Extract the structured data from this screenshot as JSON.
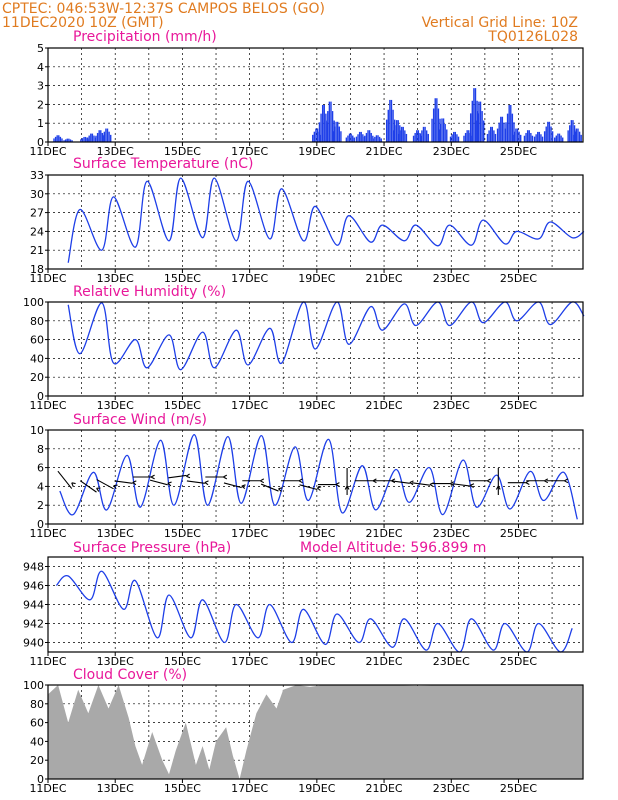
{
  "header": {
    "line1": "CPTEC:   046:53W-12:37S   CAMPOS BELOS (GO)",
    "line2_left": "11DEC2020 10Z (GMT)",
    "line2_right": "Vertical Grid Line: 10Z",
    "line3_right": "TQ0126L028"
  },
  "colors": {
    "header": "#e07b20",
    "titles": "#e8189a",
    "series": "#1e3fe8",
    "cloud": "#a9a9a9"
  },
  "x_tick_labels": [
    "11DEC",
    "13DEC",
    "15DEC",
    "17DEC",
    "19DEC",
    "21DEC",
    "23DEC",
    "25DEC"
  ],
  "model_altitude": "Model Altitude: 596.899  m",
  "chart_data": [
    {
      "type": "bar",
      "title": "Precipitation (mm/h)",
      "ylim": [
        0,
        5
      ],
      "yticks": [
        0,
        1,
        2,
        3,
        4,
        5
      ],
      "grid": true,
      "events": [
        {
          "day": 0.3,
          "value": 0.4
        },
        {
          "day": 0.6,
          "value": 0.2
        },
        {
          "day": 1.1,
          "value": 0.3
        },
        {
          "day": 1.3,
          "value": 0.5
        },
        {
          "day": 1.55,
          "value": 0.7
        },
        {
          "day": 1.75,
          "value": 0.8
        },
        {
          "day": 8.0,
          "value": 0.8
        },
        {
          "day": 8.2,
          "value": 2.2
        },
        {
          "day": 8.4,
          "value": 2.4
        },
        {
          "day": 8.6,
          "value": 1.2
        },
        {
          "day": 9.0,
          "value": 0.5
        },
        {
          "day": 9.3,
          "value": 0.6
        },
        {
          "day": 9.55,
          "value": 0.7
        },
        {
          "day": 9.8,
          "value": 0.4
        },
        {
          "day": 10.2,
          "value": 2.5
        },
        {
          "day": 10.4,
          "value": 1.3
        },
        {
          "day": 10.55,
          "value": 0.9
        },
        {
          "day": 11.0,
          "value": 0.7
        },
        {
          "day": 11.2,
          "value": 0.9
        },
        {
          "day": 11.55,
          "value": 2.6
        },
        {
          "day": 11.75,
          "value": 1.4
        },
        {
          "day": 12.1,
          "value": 0.6
        },
        {
          "day": 12.5,
          "value": 0.7
        },
        {
          "day": 12.7,
          "value": 3.2
        },
        {
          "day": 12.85,
          "value": 2.4
        },
        {
          "day": 13.2,
          "value": 0.9
        },
        {
          "day": 13.5,
          "value": 1.5
        },
        {
          "day": 13.75,
          "value": 2.2
        },
        {
          "day": 13.95,
          "value": 0.8
        },
        {
          "day": 14.3,
          "value": 0.7
        },
        {
          "day": 14.6,
          "value": 0.6
        },
        {
          "day": 14.9,
          "value": 1.2
        },
        {
          "day": 15.2,
          "value": 0.5
        },
        {
          "day": 15.6,
          "value": 1.3
        },
        {
          "day": 15.75,
          "value": 0.8
        }
      ]
    },
    {
      "type": "line",
      "title": "Surface Temperature (nC)",
      "ylim": [
        18,
        33
      ],
      "yticks": [
        18,
        21,
        24,
        27,
        30,
        33
      ],
      "grid": true,
      "mins": [
        {
          "day": 0.6,
          "value": 19.0
        },
        {
          "day": 1.6,
          "value": 21.0
        },
        {
          "day": 2.6,
          "value": 21.5
        },
        {
          "day": 3.6,
          "value": 22.5
        },
        {
          "day": 4.6,
          "value": 23.0
        },
        {
          "day": 5.6,
          "value": 22.5
        },
        {
          "day": 6.6,
          "value": 22.8
        },
        {
          "day": 7.6,
          "value": 22.5
        },
        {
          "day": 8.6,
          "value": 21.8
        },
        {
          "day": 9.6,
          "value": 22.3
        },
        {
          "day": 10.6,
          "value": 22.5
        },
        {
          "day": 11.6,
          "value": 21.7
        },
        {
          "day": 12.6,
          "value": 21.8
        },
        {
          "day": 13.6,
          "value": 22.0
        },
        {
          "day": 14.6,
          "value": 22.8
        },
        {
          "day": 15.6,
          "value": 23.0
        }
      ],
      "maxs": [
        {
          "day": 0.95,
          "value": 27.5
        },
        {
          "day": 1.95,
          "value": 29.5
        },
        {
          "day": 2.95,
          "value": 32.0
        },
        {
          "day": 3.95,
          "value": 32.5
        },
        {
          "day": 4.95,
          "value": 32.5
        },
        {
          "day": 5.95,
          "value": 32.0
        },
        {
          "day": 6.95,
          "value": 30.8
        },
        {
          "day": 7.95,
          "value": 28.0
        },
        {
          "day": 8.95,
          "value": 26.5
        },
        {
          "day": 9.95,
          "value": 25.0
        },
        {
          "day": 10.95,
          "value": 25.0
        },
        {
          "day": 11.95,
          "value": 25.0
        },
        {
          "day": 12.95,
          "value": 25.8
        },
        {
          "day": 13.95,
          "value": 24.0
        },
        {
          "day": 14.95,
          "value": 25.5
        },
        {
          "day": 15.95,
          "value": 24.0
        }
      ]
    },
    {
      "type": "line",
      "title": "Relative Humidity (%)",
      "ylim": [
        0,
        100
      ],
      "yticks": [
        0,
        20,
        40,
        60,
        80,
        100
      ],
      "grid": true,
      "mins": [
        {
          "day": 0.95,
          "value": 45
        },
        {
          "day": 1.95,
          "value": 35
        },
        {
          "day": 2.95,
          "value": 30
        },
        {
          "day": 3.95,
          "value": 28
        },
        {
          "day": 4.95,
          "value": 30
        },
        {
          "day": 5.95,
          "value": 33
        },
        {
          "day": 6.95,
          "value": 35
        },
        {
          "day": 7.95,
          "value": 50
        },
        {
          "day": 8.95,
          "value": 55
        },
        {
          "day": 9.95,
          "value": 70
        },
        {
          "day": 10.95,
          "value": 75
        },
        {
          "day": 11.95,
          "value": 75
        },
        {
          "day": 12.95,
          "value": 78
        },
        {
          "day": 13.95,
          "value": 80
        },
        {
          "day": 14.95,
          "value": 76
        },
        {
          "day": 15.95,
          "value": 85
        }
      ],
      "maxs": [
        {
          "day": 0.6,
          "value": 97
        },
        {
          "day": 1.6,
          "value": 99
        },
        {
          "day": 2.6,
          "value": 60
        },
        {
          "day": 3.6,
          "value": 65
        },
        {
          "day": 4.6,
          "value": 68
        },
        {
          "day": 5.6,
          "value": 70
        },
        {
          "day": 6.6,
          "value": 72
        },
        {
          "day": 7.6,
          "value": 100
        },
        {
          "day": 8.6,
          "value": 100
        },
        {
          "day": 9.6,
          "value": 95
        },
        {
          "day": 10.6,
          "value": 98
        },
        {
          "day": 11.6,
          "value": 100
        },
        {
          "day": 12.6,
          "value": 100
        },
        {
          "day": 13.6,
          "value": 100
        },
        {
          "day": 14.6,
          "value": 100
        },
        {
          "day": 15.6,
          "value": 100
        }
      ]
    },
    {
      "type": "line",
      "title": "Surface Wind (m/s)",
      "ylim": [
        0,
        10
      ],
      "yticks": [
        0,
        2,
        4,
        6,
        8,
        10
      ],
      "grid": true,
      "mins": [
        {
          "day": 0.75,
          "value": 1.0
        },
        {
          "day": 1.75,
          "value": 1.5
        },
        {
          "day": 2.75,
          "value": 1.8
        },
        {
          "day": 3.75,
          "value": 2.0
        },
        {
          "day": 4.75,
          "value": 2.0
        },
        {
          "day": 5.75,
          "value": 2.2
        },
        {
          "day": 6.75,
          "value": 2.0
        },
        {
          "day": 7.75,
          "value": 2.5
        },
        {
          "day": 8.75,
          "value": 1.2
        },
        {
          "day": 9.75,
          "value": 1.5
        },
        {
          "day": 10.75,
          "value": 2.3
        },
        {
          "day": 11.75,
          "value": 1.0
        },
        {
          "day": 12.75,
          "value": 1.8
        },
        {
          "day": 13.75,
          "value": 1.6
        },
        {
          "day": 14.75,
          "value": 2.5
        },
        {
          "day": 15.75,
          "value": 0.5
        }
      ],
      "maxs": [
        {
          "day": 0.35,
          "value": 3.5
        },
        {
          "day": 1.35,
          "value": 5.5
        },
        {
          "day": 2.35,
          "value": 7.3
        },
        {
          "day": 3.35,
          "value": 8.9
        },
        {
          "day": 4.35,
          "value": 9.5
        },
        {
          "day": 5.35,
          "value": 9.3
        },
        {
          "day": 6.35,
          "value": 9.4
        },
        {
          "day": 7.35,
          "value": 8.2
        },
        {
          "day": 8.35,
          "value": 9.0
        },
        {
          "day": 9.35,
          "value": 6.2
        },
        {
          "day": 10.35,
          "value": 5.8
        },
        {
          "day": 11.35,
          "value": 6.0
        },
        {
          "day": 12.35,
          "value": 6.8
        },
        {
          "day": 13.35,
          "value": 5.2
        },
        {
          "day": 14.35,
          "value": 5.6
        },
        {
          "day": 15.35,
          "value": 5.5
        }
      ],
      "wind_arrows": [
        {
          "day": 0.5,
          "speed": 5.0,
          "dir_deg": 140
        },
        {
          "day": 1.2,
          "speed": 4.2,
          "dir_deg": 155
        },
        {
          "day": 1.7,
          "speed": 4.4,
          "dir_deg": 160
        },
        {
          "day": 2.25,
          "speed": 4.5,
          "dir_deg": 175
        },
        {
          "day": 2.8,
          "speed": 5.0,
          "dir_deg": 180
        },
        {
          "day": 3.3,
          "speed": 4.5,
          "dir_deg": 170
        },
        {
          "day": 3.85,
          "speed": 5.0,
          "dir_deg": 185
        },
        {
          "day": 4.4,
          "speed": 4.5,
          "dir_deg": 175
        },
        {
          "day": 4.95,
          "speed": 5.0,
          "dir_deg": 180
        },
        {
          "day": 5.5,
          "speed": 4.2,
          "dir_deg": 170
        },
        {
          "day": 6.05,
          "speed": 4.6,
          "dir_deg": 180
        },
        {
          "day": 6.6,
          "speed": 4.0,
          "dir_deg": 165
        },
        {
          "day": 7.2,
          "speed": 4.6,
          "dir_deg": 180
        },
        {
          "day": 7.75,
          "speed": 4.0,
          "dir_deg": 170
        },
        {
          "day": 8.3,
          "speed": 4.2,
          "dir_deg": 180
        },
        {
          "day": 8.9,
          "speed": 5.0,
          "dir_deg": 90
        },
        {
          "day": 9.4,
          "speed": 4.6,
          "dir_deg": 180
        },
        {
          "day": 9.95,
          "speed": 4.6,
          "dir_deg": 180
        },
        {
          "day": 10.5,
          "speed": 4.5,
          "dir_deg": 175
        },
        {
          "day": 11.1,
          "speed": 4.3,
          "dir_deg": 175
        },
        {
          "day": 11.7,
          "speed": 4.3,
          "dir_deg": 180
        },
        {
          "day": 12.3,
          "speed": 4.2,
          "dir_deg": 175
        },
        {
          "day": 12.8,
          "speed": 4.6,
          "dir_deg": 180
        },
        {
          "day": 13.4,
          "speed": 5.0,
          "dir_deg": 90
        },
        {
          "day": 13.95,
          "speed": 4.4,
          "dir_deg": 180
        },
        {
          "day": 14.5,
          "speed": 4.6,
          "dir_deg": 180
        },
        {
          "day": 15.1,
          "speed": 4.6,
          "dir_deg": 180
        }
      ]
    },
    {
      "type": "line",
      "title": "Surface Pressure (hPa)",
      "ylim": [
        939,
        949
      ],
      "yticks": [
        940,
        942,
        944,
        946,
        948
      ],
      "grid": true,
      "mins": [
        {
          "day": 0.25,
          "value": 946.0
        },
        {
          "day": 1.25,
          "value": 944.5
        },
        {
          "day": 2.25,
          "value": 943.5
        },
        {
          "day": 3.25,
          "value": 940.5
        },
        {
          "day": 4.25,
          "value": 940.5
        },
        {
          "day": 5.25,
          "value": 940.0
        },
        {
          "day": 6.25,
          "value": 940.5
        },
        {
          "day": 7.25,
          "value": 940.0
        },
        {
          "day": 8.25,
          "value": 939.8
        },
        {
          "day": 9.25,
          "value": 940.0
        },
        {
          "day": 10.25,
          "value": 939.5
        },
        {
          "day": 11.25,
          "value": 939.2
        },
        {
          "day": 12.25,
          "value": 939.0
        },
        {
          "day": 13.25,
          "value": 939.2
        },
        {
          "day": 14.25,
          "value": 939.0
        },
        {
          "day": 15.25,
          "value": 939.0
        }
      ],
      "maxs": [
        {
          "day": 0.6,
          "value": 947.0
        },
        {
          "day": 1.6,
          "value": 947.5
        },
        {
          "day": 2.6,
          "value": 946.5
        },
        {
          "day": 3.6,
          "value": 945.0
        },
        {
          "day": 4.6,
          "value": 944.5
        },
        {
          "day": 5.6,
          "value": 944.0
        },
        {
          "day": 6.6,
          "value": 944.0
        },
        {
          "day": 7.6,
          "value": 943.5
        },
        {
          "day": 8.6,
          "value": 943.0
        },
        {
          "day": 9.6,
          "value": 942.5
        },
        {
          "day": 10.6,
          "value": 942.5
        },
        {
          "day": 11.6,
          "value": 942.0
        },
        {
          "day": 12.6,
          "value": 942.5
        },
        {
          "day": 13.6,
          "value": 942.0
        },
        {
          "day": 14.6,
          "value": 942.0
        },
        {
          "day": 15.6,
          "value": 941.5
        }
      ]
    },
    {
      "type": "area",
      "title": "Cloud Cover (%)",
      "ylim": [
        0,
        100
      ],
      "yticks": [
        0,
        20,
        40,
        60,
        80,
        100
      ],
      "grid": true,
      "points": [
        {
          "day": 0.0,
          "value": 90
        },
        {
          "day": 0.3,
          "value": 100
        },
        {
          "day": 0.6,
          "value": 60
        },
        {
          "day": 0.9,
          "value": 95
        },
        {
          "day": 1.2,
          "value": 70
        },
        {
          "day": 1.5,
          "value": 100
        },
        {
          "day": 1.8,
          "value": 75
        },
        {
          "day": 2.1,
          "value": 100
        },
        {
          "day": 2.4,
          "value": 65
        },
        {
          "day": 2.6,
          "value": 35
        },
        {
          "day": 2.8,
          "value": 15
        },
        {
          "day": 3.1,
          "value": 50
        },
        {
          "day": 3.4,
          "value": 20
        },
        {
          "day": 3.6,
          "value": 5
        },
        {
          "day": 3.8,
          "value": 30
        },
        {
          "day": 4.1,
          "value": 60
        },
        {
          "day": 4.4,
          "value": 15
        },
        {
          "day": 4.6,
          "value": 35
        },
        {
          "day": 4.8,
          "value": 10
        },
        {
          "day": 5.0,
          "value": 40
        },
        {
          "day": 5.3,
          "value": 55
        },
        {
          "day": 5.5,
          "value": 25
        },
        {
          "day": 5.7,
          "value": 0
        },
        {
          "day": 5.9,
          "value": 30
        },
        {
          "day": 6.2,
          "value": 70
        },
        {
          "day": 6.5,
          "value": 90
        },
        {
          "day": 6.8,
          "value": 75
        },
        {
          "day": 7.0,
          "value": 95
        },
        {
          "day": 7.4,
          "value": 100
        },
        {
          "day": 7.8,
          "value": 98
        },
        {
          "day": 8.2,
          "value": 100
        },
        {
          "day": 9.0,
          "value": 100
        },
        {
          "day": 10.0,
          "value": 100
        },
        {
          "day": 11.0,
          "value": 99
        },
        {
          "day": 12.0,
          "value": 100
        },
        {
          "day": 13.0,
          "value": 100
        },
        {
          "day": 14.0,
          "value": 100
        },
        {
          "day": 15.0,
          "value": 100
        },
        {
          "day": 15.9,
          "value": 100
        }
      ]
    }
  ]
}
